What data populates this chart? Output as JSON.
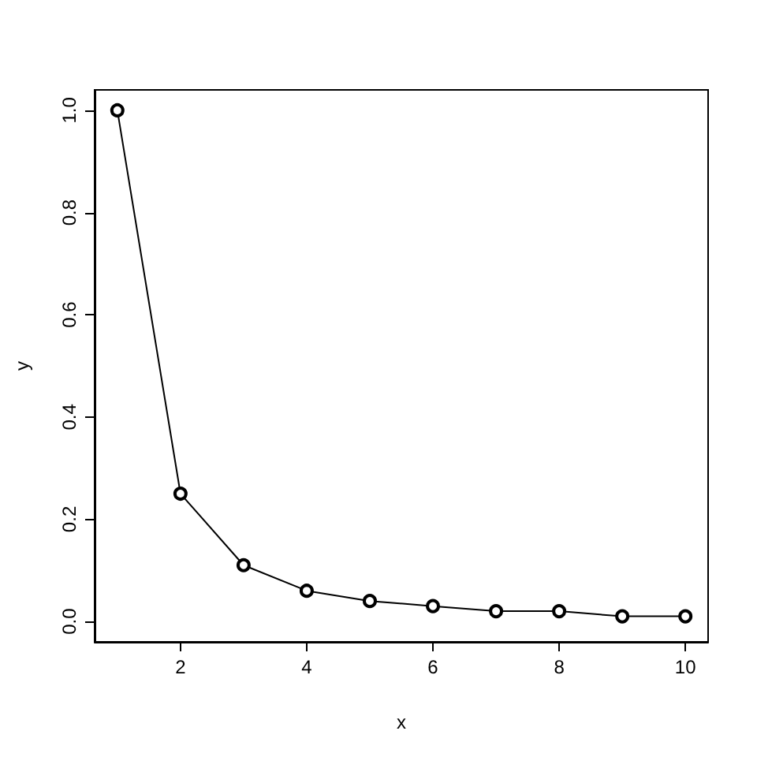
{
  "chart_data": {
    "type": "line",
    "xlabel": "x",
    "ylabel": "y",
    "x": [
      1,
      2,
      3,
      4,
      5,
      6,
      7,
      8,
      9,
      10
    ],
    "series": [
      {
        "color": "#000000",
        "values": [
          1,
          0.25,
          0.11,
          0.06,
          0.04,
          0.03,
          0.02,
          0.02,
          0.01,
          0.01
        ]
      }
    ],
    "xlim": [
      0.64,
      10.36
    ],
    "ylim": [
      -0.04,
      1.04
    ],
    "xticks": [
      2,
      4,
      6,
      8,
      10
    ],
    "yticks": [
      {
        "value": 0,
        "label": "0.0"
      },
      0.2,
      0.4,
      0.6,
      0.8,
      {
        "value": 1,
        "label": "1.0"
      }
    ],
    "marker": "circle",
    "line_style": "solid",
    "grid": false
  }
}
